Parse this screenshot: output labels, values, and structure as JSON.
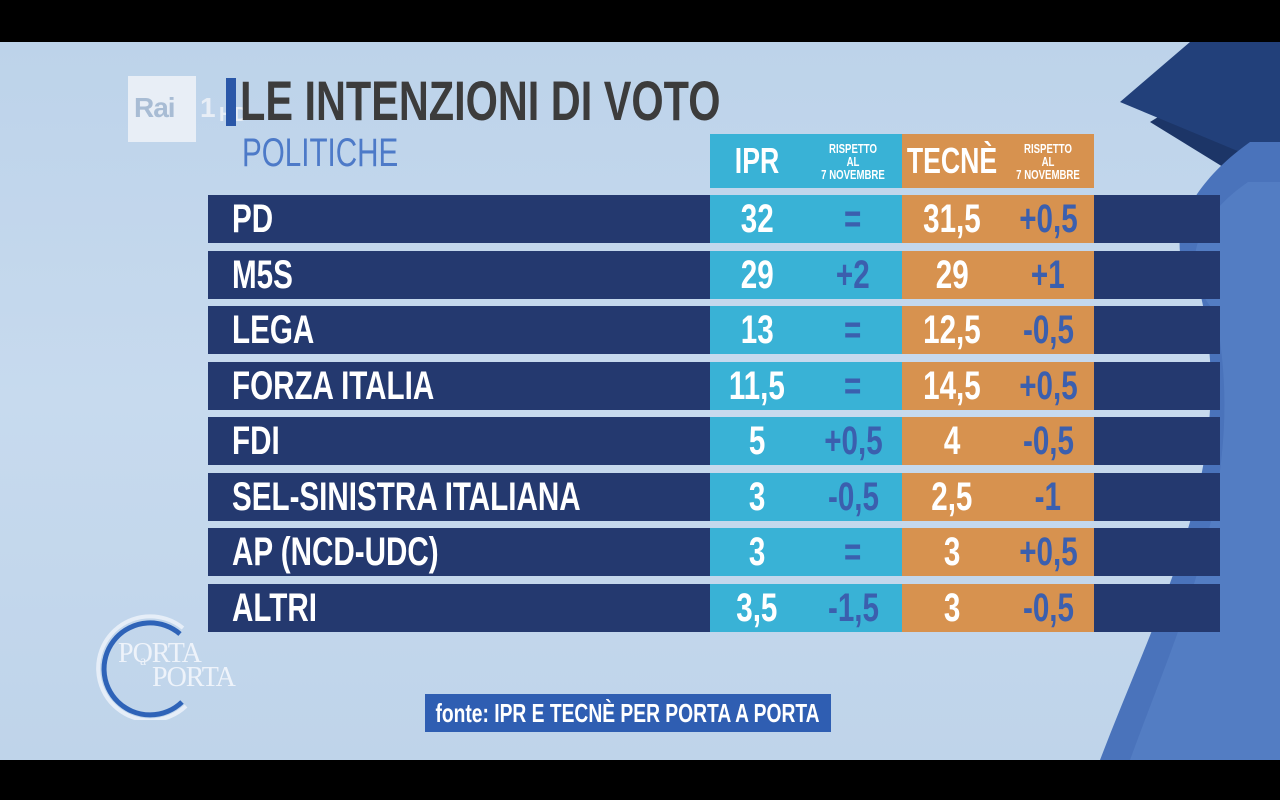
{
  "broadcaster": {
    "name": "Rai",
    "channel": "1",
    "quality": "HD"
  },
  "title": "LE INTENZIONI DI VOTO",
  "subtitle": "POLITICHE",
  "columns": {
    "ipr": "IPR",
    "ipr_delta": "RISPETTO\nAL\n7 NOVEMBRE",
    "tecne": "TECNÈ",
    "tecne_delta": "RISPETTO\nAL\n7 NOVEMBRE"
  },
  "rows": [
    {
      "party": "PD",
      "ipr": "32",
      "ipr_delta": "=",
      "tecne": "31,5",
      "tecne_delta": "+0,5"
    },
    {
      "party": "M5S",
      "ipr": "29",
      "ipr_delta": "+2",
      "tecne": "29",
      "tecne_delta": "+1"
    },
    {
      "party": "LEGA",
      "ipr": "13",
      "ipr_delta": "=",
      "tecne": "12,5",
      "tecne_delta": "-0,5"
    },
    {
      "party": "FORZA ITALIA",
      "ipr": "11,5",
      "ipr_delta": "=",
      "tecne": "14,5",
      "tecne_delta": "+0,5"
    },
    {
      "party": "FDI",
      "ipr": "5",
      "ipr_delta": "+0,5",
      "tecne": "4",
      "tecne_delta": "-0,5"
    },
    {
      "party": "SEL-SINISTRA ITALIANA",
      "ipr": "3",
      "ipr_delta": "-0,5",
      "tecne": "2,5",
      "tecne_delta": "-1"
    },
    {
      "party": "AP (NCD-UDC)",
      "ipr": "3",
      "ipr_delta": "=",
      "tecne": "3",
      "tecne_delta": "+0,5"
    },
    {
      "party": "ALTRI",
      "ipr": "3,5",
      "ipr_delta": "-1,5",
      "tecne": "3",
      "tecne_delta": "-0,5"
    }
  ],
  "show_logo": {
    "line1": "PORTA",
    "line2": "a",
    "line3": "PORTA"
  },
  "source": "fonte: IPR E TECNÈ PER PORTA A PORTA",
  "colors": {
    "ipr": "#39b2d6",
    "tecne": "#d7924f",
    "row": "#24396f",
    "delta_text": "#3b5fae",
    "title_bar": "#2a57a8"
  }
}
